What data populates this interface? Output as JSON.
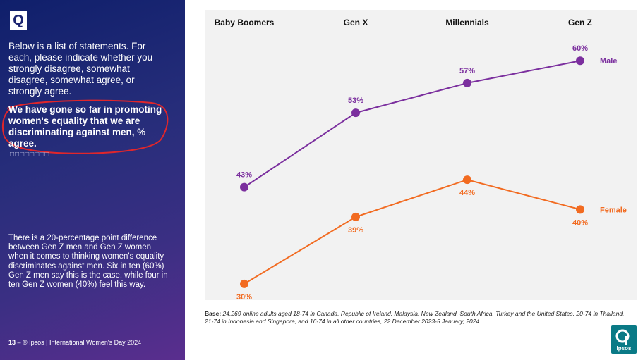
{
  "left_panel": {
    "q_label": "Q",
    "question": "Below is a list of statements. For each, please indicate whether you strongly disagree, somewhat disagree, somewhat agree, or strongly agree.",
    "statement": "We have gone so far in promoting women's equality that we are discriminating against men, % agree.",
    "placeholder_boxes": "□□□□□□□□",
    "insight": "There is a 20-percentage point difference between Gen Z men and Gen Z women when it comes to thinking women's equality discriminates against men. Six in ten (60%) Gen Z men say this is the case, while four in ten Gen Z women (40%) feel this way.",
    "footer_page": "13",
    "footer_text": " – © Ipsos | International Women's Day 2024"
  },
  "base_note": {
    "label": "Base:",
    "text": " 24,269 online adults aged 18-74 in Canada, Republic of Ireland, Malaysia, New Zealand, South Africa, Turkey and the United States, 20-74 in Thailand, 21-74 in Indonesia and Singapore, and 16-74 in all other countries, 22 December 2023-5 January, 2024"
  },
  "logo": {
    "text": "Ipsos"
  },
  "colors": {
    "male": "#7b2f9e",
    "female": "#f26b21",
    "panel": "#1b2470",
    "highlight": "#e0262b"
  },
  "chart_data": {
    "type": "line",
    "categories": [
      "Baby Boomers",
      "Gen X",
      "Millennials",
      "Gen Z"
    ],
    "series": [
      {
        "name": "Male",
        "values": [
          43,
          53,
          57,
          60
        ],
        "labels": [
          "43%",
          "53%",
          "57%",
          "60%"
        ]
      },
      {
        "name": "Female",
        "values": [
          30,
          39,
          44,
          40
        ],
        "labels": [
          "30%",
          "39%",
          "44%",
          "40%"
        ]
      }
    ],
    "title": "",
    "xlabel": "",
    "ylabel": "",
    "ylim": [
      28,
      64
    ],
    "grid": false,
    "legend": "end-of-line labels"
  }
}
